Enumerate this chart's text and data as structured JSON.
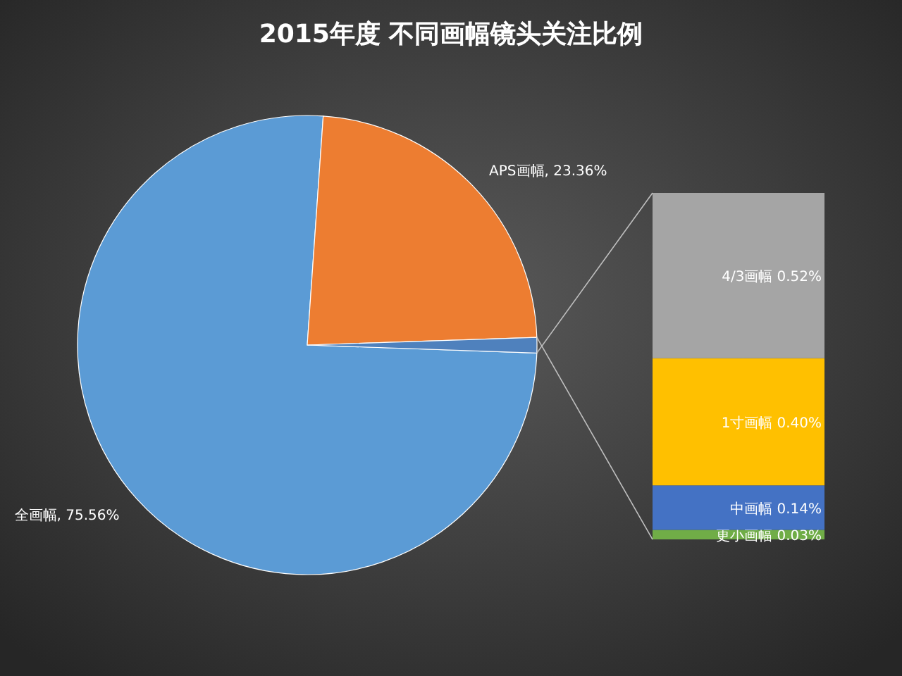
{
  "chart_data": [
    {
      "type": "pie",
      "title": "2015年度 不同画幅镜头关注比例",
      "categories": [
        "全画幅",
        "APS画幅",
        null
      ],
      "values": [
        75.56,
        23.36,
        1.09
      ],
      "colors": [
        "#5b9bd5",
        "#ed7d31",
        "#4f81bd"
      ],
      "value_labels": [
        "75.56%",
        "23.36%",
        null
      ]
    },
    {
      "type": "bar",
      "stacked": true,
      "categories": [
        null
      ],
      "series": [
        {
          "name": "更小画幅",
          "color": "#70ad47",
          "values": [
            0.03
          ],
          "value_labels": [
            "0.03%"
          ]
        },
        {
          "name": "中画幅",
          "color": "#4472c4",
          "values": [
            0.14
          ],
          "value_labels": [
            "0.14%"
          ]
        },
        {
          "name": "1寸画幅",
          "color": "#ffc000",
          "values": [
            0.4
          ],
          "value_labels": [
            "0.40%"
          ]
        },
        {
          "name": "4/3画幅",
          "color": "#a5a5a5",
          "values": [
            0.52
          ],
          "value_labels": [
            "0.52%"
          ]
        }
      ]
    }
  ]
}
